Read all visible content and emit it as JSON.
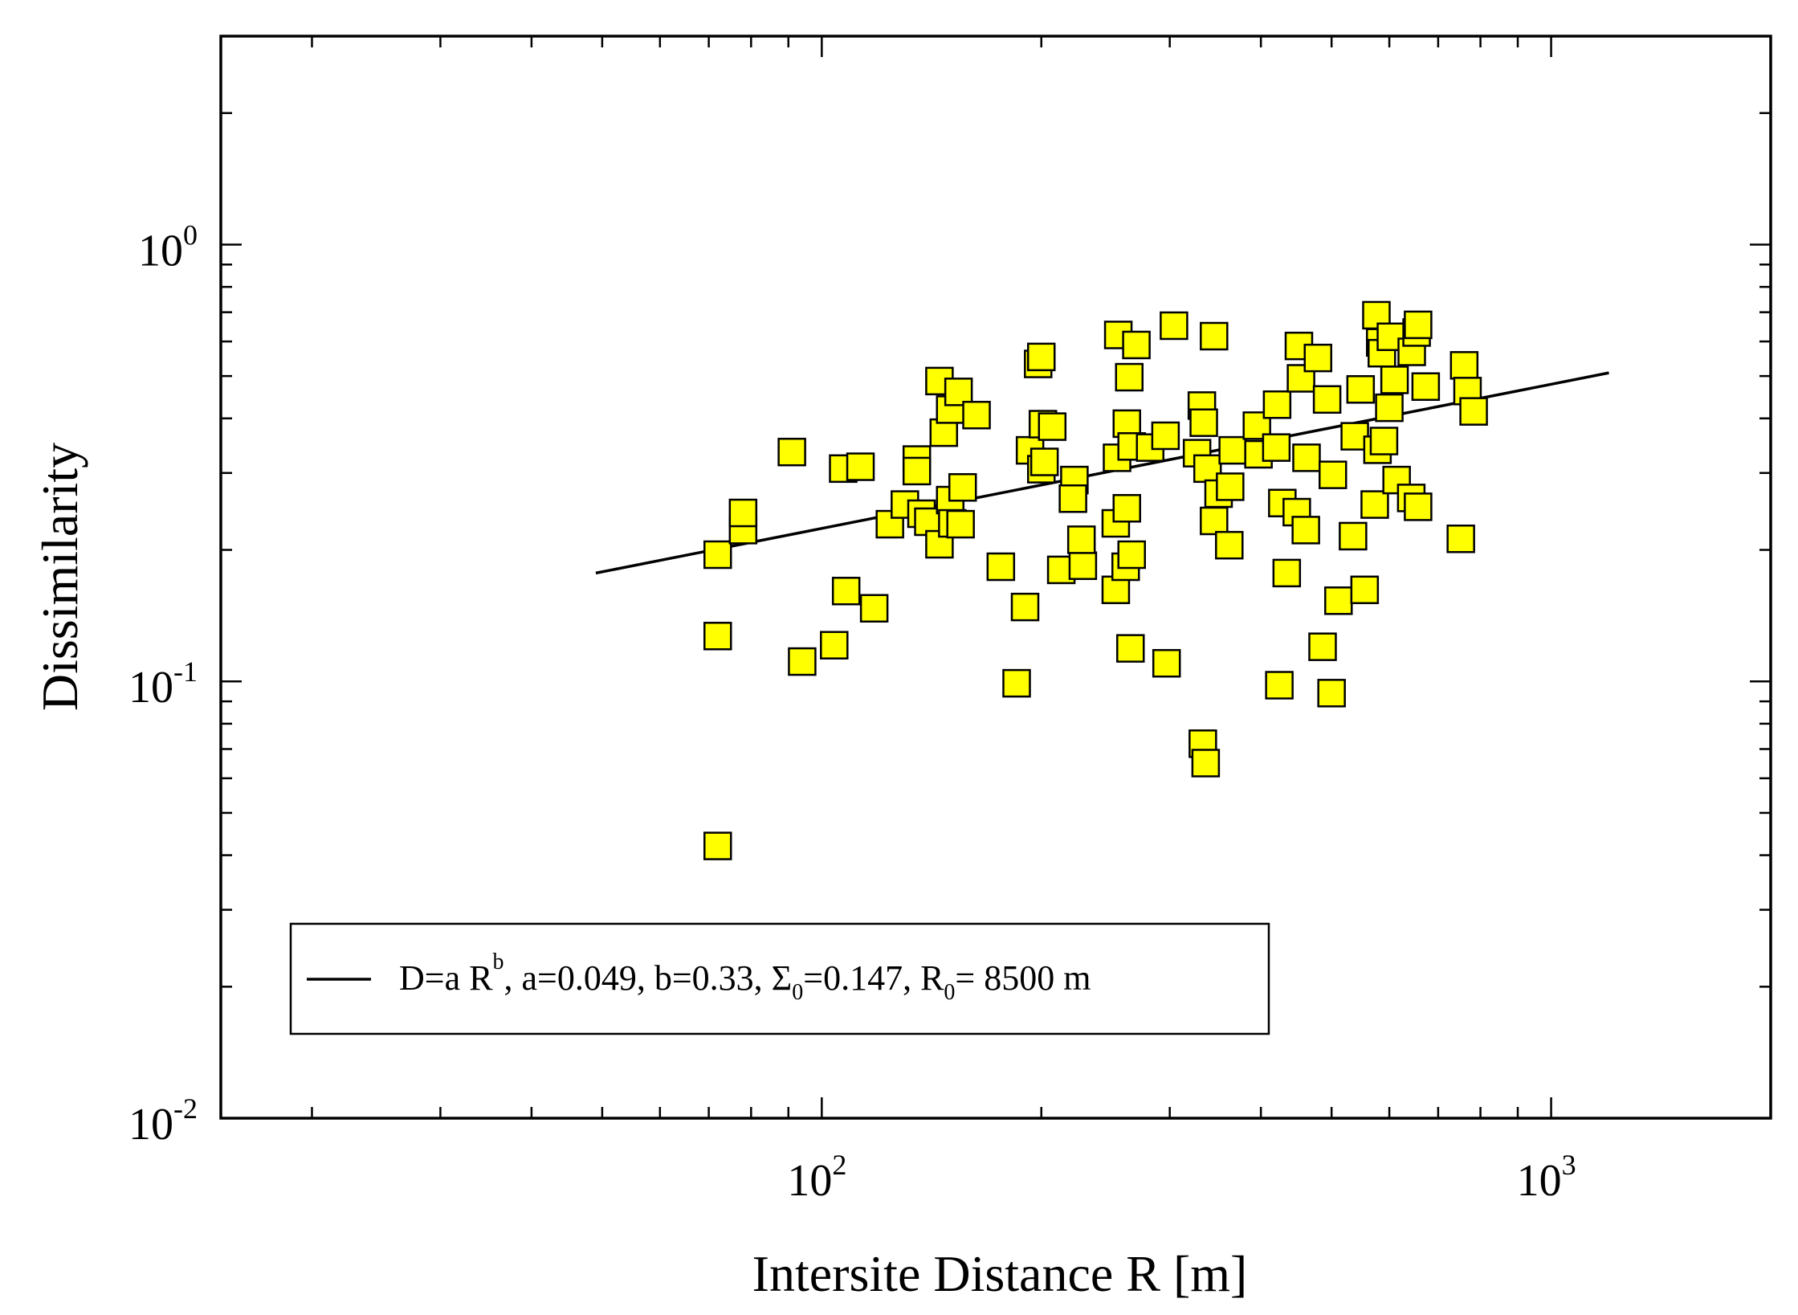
{
  "chart_data": {
    "type": "scatter",
    "title": "",
    "xlabel": "Intersite Distance R [m]",
    "ylabel": "Dissimilarity",
    "xscale": "log",
    "yscale": "log",
    "xlim": [
      15,
      2000
    ],
    "ylim": [
      0.01,
      3
    ],
    "x_ticks": [
      {
        "value": 100,
        "base": "10",
        "exp": "2"
      },
      {
        "value": 1000,
        "base": "10",
        "exp": "3"
      }
    ],
    "y_ticks": [
      {
        "value": 0.01,
        "base": "10",
        "exp": "-2"
      },
      {
        "value": 0.1,
        "base": "10",
        "exp": "-1"
      },
      {
        "value": 1,
        "base": "10",
        "exp": "0"
      }
    ],
    "marker_color": "#ffff00",
    "marker_edge_color": "#000000",
    "fit_line": {
      "name": "D=a R^b fit",
      "a": 0.049,
      "b": 0.33,
      "x_range": [
        49,
        1200
      ]
    },
    "legend": {
      "location": "bottom-left",
      "label_main": "D=a R",
      "label_sup": "b",
      "label_mid1": ", a=0.049, b=0.33, Σ",
      "label_sub1": "0",
      "label_mid2": "=0.147, R",
      "label_sub2": "0",
      "label_end": "= 8500 m"
    },
    "series": [
      {
        "name": "Dissimilarity",
        "points": [
          [
            72,
            0.042
          ],
          [
            72,
            0.127
          ],
          [
            72,
            0.195
          ],
          [
            78,
            0.222
          ],
          [
            78,
            0.243
          ],
          [
            91,
            0.335
          ],
          [
            94,
            0.111
          ],
          [
            104,
            0.121
          ],
          [
            107,
            0.307
          ],
          [
            108,
            0.161
          ],
          [
            113,
            0.31
          ],
          [
            118,
            0.147
          ],
          [
            124,
            0.229
          ],
          [
            130,
            0.254
          ],
          [
            135,
            0.322
          ],
          [
            135,
            0.303
          ],
          [
            137,
            0.242
          ],
          [
            140,
            0.232
          ],
          [
            145,
            0.206
          ],
          [
            145,
            0.487
          ],
          [
            147,
            0.371
          ],
          [
            150,
            0.26
          ],
          [
            151,
            0.23
          ],
          [
            150,
            0.419
          ],
          [
            155,
            0.229
          ],
          [
            154,
            0.46
          ],
          [
            156,
            0.278
          ],
          [
            163,
            0.407
          ],
          [
            176,
            0.183
          ],
          [
            185,
            0.099
          ],
          [
            190,
            0.148
          ],
          [
            193,
            0.338
          ],
          [
            198,
            0.533
          ],
          [
            200,
            0.553
          ],
          [
            200,
            0.306
          ],
          [
            201,
            0.388
          ],
          [
            202,
            0.318
          ],
          [
            207,
            0.383
          ],
          [
            213,
            0.18
          ],
          [
            222,
            0.289
          ],
          [
            221,
            0.262
          ],
          [
            228,
            0.184
          ],
          [
            227,
            0.211
          ],
          [
            253,
            0.162
          ],
          [
            253,
            0.23
          ],
          [
            254,
            0.325
          ],
          [
            255,
            0.621
          ],
          [
            261,
            0.183
          ],
          [
            262,
            0.249
          ],
          [
            262,
            0.389
          ],
          [
            264,
            0.497
          ],
          [
            265,
            0.119
          ],
          [
            266,
            0.345
          ],
          [
            266,
            0.195
          ],
          [
            270,
            0.589
          ],
          [
            282,
            0.343
          ],
          [
            296,
            0.365
          ],
          [
            297,
            0.11
          ],
          [
            304,
            0.652
          ],
          [
            327,
            0.333
          ],
          [
            333,
            0.072
          ],
          [
            332,
            0.428
          ],
          [
            334,
            0.391
          ],
          [
            336,
            0.065
          ],
          [
            338,
            0.307
          ],
          [
            345,
            0.617
          ],
          [
            345,
            0.233
          ],
          [
            350,
            0.269
          ],
          [
            363,
            0.279
          ],
          [
            362,
            0.205
          ],
          [
            366,
            0.338
          ],
          [
            395,
            0.385
          ],
          [
            397,
            0.331
          ],
          [
            420,
            0.343
          ],
          [
            421,
            0.43
          ],
          [
            424,
            0.098
          ],
          [
            428,
            0.256
          ],
          [
            434,
            0.177
          ],
          [
            448,
            0.244
          ],
          [
            451,
            0.586
          ],
          [
            454,
            0.494
          ],
          [
            462,
            0.325
          ],
          [
            461,
            0.222
          ],
          [
            479,
            0.55
          ],
          [
            486,
            0.12
          ],
          [
            493,
            0.442
          ],
          [
            500,
            0.094
          ],
          [
            502,
            0.297
          ],
          [
            511,
            0.153
          ],
          [
            535,
            0.215
          ],
          [
            538,
            0.364
          ],
          [
            548,
            0.466
          ],
          [
            555,
            0.162
          ],
          [
            573,
            0.254
          ],
          [
            576,
            0.689
          ],
          [
            578,
            0.339
          ],
          [
            583,
            0.597
          ],
          [
            586,
            0.564
          ],
          [
            590,
            0.355
          ],
          [
            600,
            0.423
          ],
          [
            603,
            0.615
          ],
          [
            610,
            0.49
          ],
          [
            614,
            0.289
          ],
          [
            643,
            0.263
          ],
          [
            644,
            0.568
          ],
          [
            654,
            0.629
          ],
          [
            657,
            0.251
          ],
          [
            657,
            0.655
          ],
          [
            673,
            0.473
          ],
          [
            752,
            0.212
          ],
          [
            760,
            0.529
          ],
          [
            768,
            0.462
          ],
          [
            783,
            0.415
          ]
        ]
      }
    ]
  }
}
